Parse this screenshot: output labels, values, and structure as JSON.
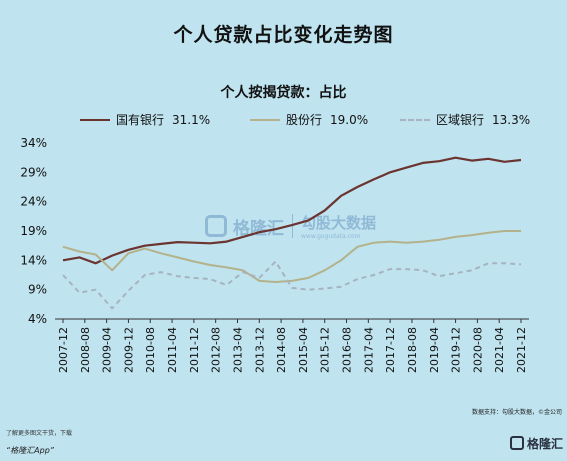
{
  "header": {
    "title": "个人贷款占比变化走势图"
  },
  "chart_data": {
    "type": "line",
    "title": "个人按揭贷款：占比",
    "x": [
      "2007-12",
      "2008-06",
      "2008-12",
      "2009-06",
      "2009-12",
      "2010-06",
      "2010-12",
      "2011-06",
      "2011-12",
      "2012-06",
      "2012-12",
      "2013-06",
      "2013-12",
      "2014-06",
      "2014-12",
      "2015-06",
      "2015-12",
      "2016-06",
      "2016-12",
      "2017-06",
      "2017-12",
      "2018-06",
      "2018-12",
      "2019-06",
      "2019-12",
      "2020-06",
      "2020-12",
      "2021-06",
      "2021-12"
    ],
    "xticks": [
      "2007-12",
      "2008-08",
      "2009-04",
      "2009-12",
      "2010-08",
      "2011-04",
      "2011-12",
      "2012-08",
      "2013-04",
      "2013-12",
      "2014-08",
      "2015-04",
      "2015-12",
      "2016-08",
      "2017-04",
      "2017-12",
      "2018-08",
      "2019-04",
      "2019-12",
      "2020-08",
      "2021-04",
      "2021-12"
    ],
    "yticks": [
      "4%",
      "9%",
      "14%",
      "19%",
      "24%",
      "29%",
      "34%"
    ],
    "ylim": [
      4,
      34
    ],
    "series": [
      {
        "name": "国有银行",
        "label_value": "31.1%",
        "color": "#6b3430",
        "dash": "",
        "values": [
          14.0,
          14.5,
          13.5,
          14.8,
          15.8,
          16.5,
          16.8,
          17.1,
          17.0,
          16.9,
          17.2,
          18.0,
          18.8,
          19.3,
          20.0,
          20.8,
          22.5,
          25.0,
          26.5,
          27.8,
          29.0,
          29.8,
          30.6,
          30.9,
          31.5,
          31.0,
          31.3,
          30.8,
          31.1
        ]
      },
      {
        "name": "股份行",
        "label_value": "19.0%",
        "color": "#b3b28a",
        "dash": "",
        "values": [
          16.3,
          15.5,
          15.0,
          12.3,
          15.2,
          16.0,
          15.2,
          14.5,
          13.8,
          13.2,
          12.8,
          12.3,
          10.5,
          10.3,
          10.5,
          11.0,
          12.3,
          14.0,
          16.3,
          17.0,
          17.2,
          17.0,
          17.2,
          17.5,
          18.0,
          18.3,
          18.7,
          19.0,
          19.0
        ]
      },
      {
        "name": "区域银行",
        "label_value": "13.3%",
        "color": "#a7b3c0",
        "dash": "5,4",
        "values": [
          11.5,
          8.5,
          9.0,
          5.8,
          8.8,
          11.5,
          12.0,
          11.3,
          11.0,
          10.8,
          9.8,
          12.0,
          11.0,
          13.8,
          9.3,
          9.0,
          9.2,
          9.5,
          10.8,
          11.5,
          12.5,
          12.5,
          12.3,
          11.3,
          11.8,
          12.3,
          13.5,
          13.5,
          13.3
        ]
      }
    ],
    "grid": false,
    "legend": "top"
  },
  "source": "数据支持：勾股大数据，©金公司",
  "footer": {
    "line1": "了解更多图文干货，下载",
    "line2": "“格隆汇App”"
  },
  "watermark": {
    "name": "格隆汇",
    "right_title": "勾股大数据",
    "right_sub": "www.gogudata.com"
  },
  "brand": {
    "name": "格隆汇"
  }
}
